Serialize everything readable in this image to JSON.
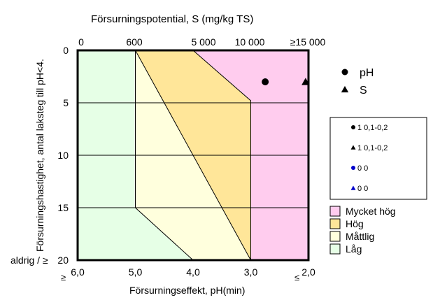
{
  "chart_data": {
    "type": "area",
    "title": "",
    "top_axis": {
      "label": "Försurningspotential,  S (mg/kg TS)",
      "tick_labels": [
        "0",
        "600",
        "5 000",
        "10 000",
        "≥15 000"
      ]
    },
    "bottom_axis": {
      "label": "Försurningseffekt, pH(min)",
      "tick_labels": [
        "6,0",
        "5,0",
        "4,0",
        "3,0",
        "2,0"
      ],
      "ge_marker": "≥",
      "le_marker": "≤",
      "range": [
        6.0,
        2.0
      ]
    },
    "left_axis": {
      "label": "Försurningshastighet,  antal laksteg till pH<4.",
      "tick_labels": [
        "0",
        "5",
        "10",
        "15",
        "20"
      ],
      "bottom_prefix": "aldrig / ≥",
      "range": [
        0,
        20
      ]
    },
    "zones": [
      {
        "name": "Mycket hög",
        "color": "#ffccee"
      },
      {
        "name": "Hög",
        "color": "#ffe699"
      },
      {
        "name": "Måttlig",
        "color": "#ffffdd"
      },
      {
        "name": "Låg",
        "color": "#e6ffe6"
      }
    ],
    "zone_boundaries": [
      {
        "between": "Låg/Måttlig",
        "points": [
          [
            5.0,
            0
          ],
          [
            5.0,
            15
          ],
          [
            4.0,
            20
          ]
        ]
      },
      {
        "between": "Måttlig/Hög",
        "points": [
          [
            5.0,
            0
          ],
          [
            3.0,
            20
          ]
        ]
      },
      {
        "between": "Hög/Mycket hög",
        "points": [
          [
            4.0,
            0
          ],
          [
            3.0,
            4.8
          ],
          [
            3.0,
            20
          ]
        ]
      }
    ],
    "series": [
      {
        "name": "pH",
        "marker": "circle",
        "color": "#000000",
        "points": [
          [
            2.75,
            3
          ]
        ]
      },
      {
        "name": "S",
        "marker": "triangle",
        "color": "#000000",
        "points": [
          [
            2.05,
            3
          ]
        ]
      }
    ],
    "legend_markers": [
      {
        "label": "pH",
        "marker": "circle"
      },
      {
        "label": "S",
        "marker": "triangle"
      }
    ],
    "legend_box": [
      {
        "label": "1 0,1-0,2",
        "marker": "circle",
        "color": "#000000"
      },
      {
        "label": "1 0,1-0,2",
        "marker": "triangle",
        "color": "#000000"
      },
      {
        "label": "0 0",
        "marker": "circle",
        "color": "#0000cc"
      },
      {
        "label": "0 0",
        "marker": "triangle",
        "color": "#0000cc"
      }
    ],
    "grid": "horizontal at each y tick"
  }
}
